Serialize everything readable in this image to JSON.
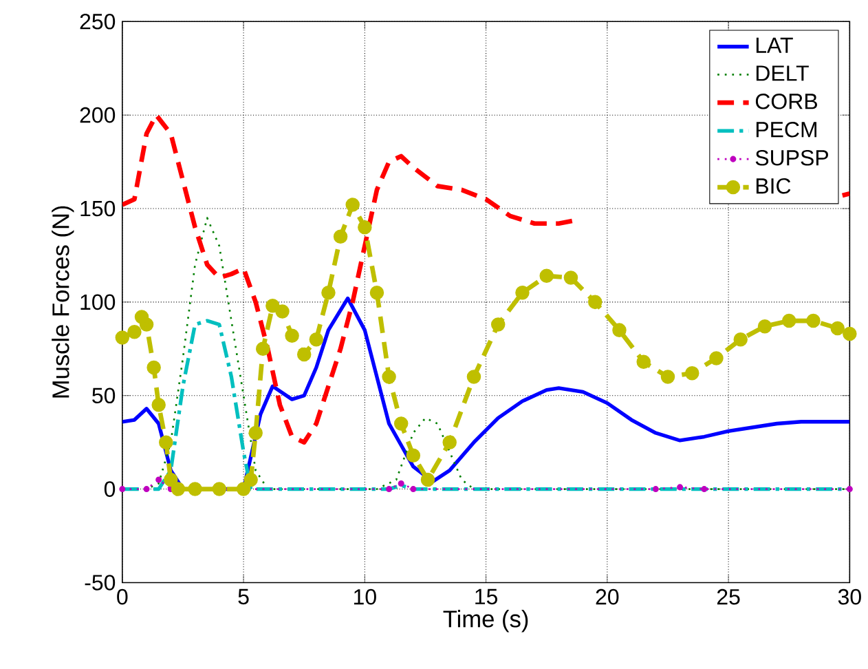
{
  "chart_data": {
    "type": "line",
    "xlabel": "Time (s)",
    "ylabel": "Muscle Forces (N)",
    "xlim": [
      0,
      30
    ],
    "ylim": [
      -50,
      250
    ],
    "xticks": [
      0,
      5,
      10,
      15,
      20,
      25,
      30
    ],
    "yticks": [
      -50,
      0,
      50,
      100,
      150,
      200,
      250
    ],
    "grid": true,
    "legend": "top right",
    "series": [
      {
        "name": "LAT",
        "color": "#0000ff",
        "line_style": "solid",
        "marker": "none",
        "x": [
          0,
          0.5,
          1,
          1.5,
          2,
          2.5,
          3,
          4,
          5,
          5.7,
          6.2,
          7,
          7.5,
          8,
          8.5,
          9.3,
          10,
          10.5,
          11,
          12,
          12.8,
          13.5,
          14.5,
          15.5,
          16.5,
          17.5,
          18,
          19,
          20,
          21,
          22,
          23,
          24,
          25,
          26,
          27,
          28,
          30
        ],
        "values": [
          36,
          37,
          43,
          35,
          10,
          0,
          0,
          0,
          0,
          40,
          55,
          48,
          50,
          65,
          85,
          102,
          85,
          60,
          35,
          12,
          4,
          10,
          25,
          38,
          47,
          53,
          54,
          52,
          46,
          37,
          30,
          26,
          28,
          31,
          33,
          35,
          36,
          36
        ]
      },
      {
        "name": "DELT",
        "color": "#008000",
        "line_style": "dotted",
        "marker": "none",
        "x": [
          0,
          1,
          1.5,
          2,
          2.5,
          3,
          3.5,
          4,
          4.5,
          5,
          5.5,
          6,
          10.5,
          11.3,
          12,
          12.5,
          13,
          13.5,
          14,
          14.5,
          30
        ],
        "values": [
          0,
          0,
          3,
          25,
          70,
          120,
          145,
          130,
          90,
          50,
          10,
          0,
          0,
          5,
          30,
          38,
          35,
          20,
          5,
          0,
          0
        ]
      },
      {
        "name": "CORB",
        "color": "#ff0000",
        "line_style": "dashed",
        "marker": "none",
        "x": [
          0,
          0.5,
          1,
          1.4,
          2,
          2.5,
          3,
          3.5,
          4,
          4.5,
          5,
          5.5,
          6,
          6.5,
          7,
          7.5,
          8,
          9,
          9.5,
          10,
          10.5,
          11,
          11.5,
          12,
          13,
          14,
          15,
          16,
          17,
          18,
          18.8,
          19.5,
          29.7,
          30
        ],
        "values": [
          152,
          155,
          190,
          200,
          190,
          165,
          140,
          120,
          113,
          115,
          118,
          100,
          75,
          45,
          28,
          25,
          35,
          75,
          100,
          130,
          160,
          175,
          178,
          172,
          162,
          160,
          155,
          146,
          142,
          142,
          144,
          null,
          157,
          158
        ]
      },
      {
        "name": "PECM",
        "color": "#00bfbf",
        "line_style": "dashdot",
        "marker": "none",
        "x": [
          0,
          1.5,
          2,
          2.5,
          3,
          3.5,
          4,
          4.5,
          5,
          5.3,
          11,
          11.5,
          12,
          30
        ],
        "values": [
          0,
          0,
          10,
          55,
          88,
          90,
          88,
          60,
          20,
          0,
          0,
          2,
          0,
          0
        ]
      },
      {
        "name": "SUPSP",
        "color": "#bf00bf",
        "line_style": "dotted",
        "marker": "circle",
        "x": [
          0,
          1,
          1.5,
          2,
          11,
          11.5,
          12,
          22,
          23,
          24,
          30
        ],
        "values": [
          0,
          0,
          5,
          0,
          0,
          3,
          0,
          0,
          1,
          0,
          0
        ]
      },
      {
        "name": "BIC",
        "color": "#bfbf00",
        "line_style": "dashed",
        "marker": "circle",
        "x": [
          0,
          0.5,
          0.8,
          1,
          1.3,
          1.5,
          1.8,
          2,
          2.3,
          3,
          4,
          5,
          5.3,
          5.5,
          5.8,
          6.2,
          6.6,
          7,
          7.5,
          8,
          8.5,
          9,
          9.5,
          10,
          10.5,
          11,
          11.5,
          12,
          12.6,
          13.5,
          14.5,
          15.5,
          16.5,
          17.5,
          18.5,
          19.5,
          20.5,
          21.5,
          22.5,
          23.5,
          24.5,
          25.5,
          26.5,
          27.5,
          28.5,
          29.5,
          30
        ],
        "values": [
          81,
          84,
          92,
          88,
          65,
          45,
          25,
          5,
          0,
          0,
          0,
          0,
          5,
          30,
          75,
          98,
          95,
          82,
          72,
          80,
          105,
          135,
          152,
          140,
          105,
          60,
          35,
          18,
          5,
          25,
          60,
          88,
          105,
          114,
          113,
          100,
          85,
          68,
          60,
          62,
          70,
          80,
          87,
          90,
          90,
          86,
          83
        ]
      }
    ]
  }
}
